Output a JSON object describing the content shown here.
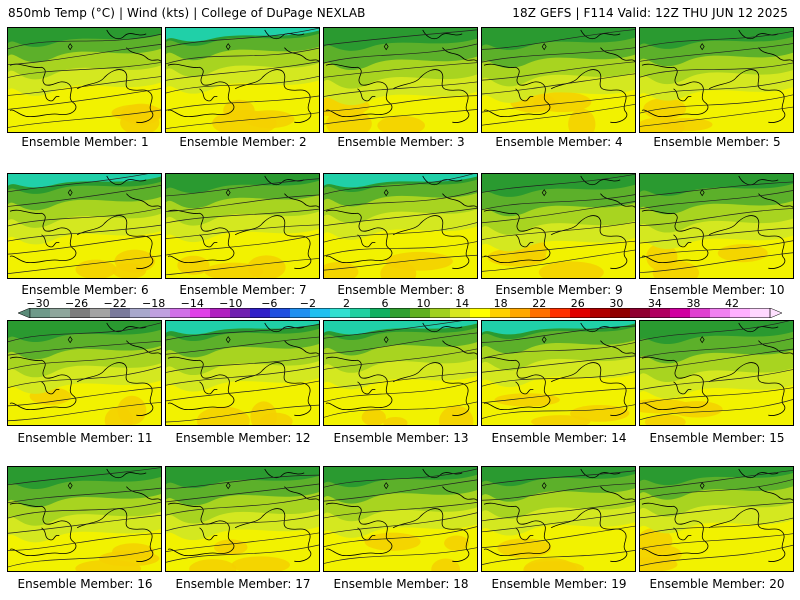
{
  "header": {
    "left": "850mb Temp (°C) | Wind (kts) | College of DuPage NEXLAB",
    "right": "18Z GEFS | F114 Valid: 12Z THU JUN 12 2025"
  },
  "legend": {
    "ticks": [
      "-30",
      "-26",
      "-22",
      "-18",
      "-14",
      "-10",
      "-6",
      "-2",
      "2",
      "6",
      "10",
      "14",
      "18",
      "22",
      "26",
      "30",
      "34",
      "38",
      "42"
    ],
    "colors": [
      "#6e9a8a",
      "#8ea69c",
      "#7d7d7d",
      "#a3a3a3",
      "#7a7a9c",
      "#a8a8cc",
      "#c0a0e0",
      "#d070e8",
      "#e040e8",
      "#b020c0",
      "#7020b0",
      "#3020c8",
      "#2050e0",
      "#2090f0",
      "#20c0f0",
      "#30e0d0",
      "#20d0a0",
      "#10b060",
      "#30a030",
      "#60b020",
      "#a0d020",
      "#d8e820",
      "#ffff00",
      "#ffd000",
      "#ffa800",
      "#ff7000",
      "#ff3000",
      "#e00000",
      "#b00000",
      "#900000",
      "#900030",
      "#b00060",
      "#d000a0",
      "#e040d0",
      "#f080f0",
      "#ffb0ff",
      "#ffd8ff"
    ]
  },
  "panels": [
    {
      "label": "Ensemble Member: 1"
    },
    {
      "label": "Ensemble Member: 2"
    },
    {
      "label": "Ensemble Member: 3"
    },
    {
      "label": "Ensemble Member: 4"
    },
    {
      "label": "Ensemble Member: 5"
    },
    {
      "label": "Ensemble Member: 6"
    },
    {
      "label": "Ensemble Member: 7"
    },
    {
      "label": "Ensemble Member: 8"
    },
    {
      "label": "Ensemble Member: 9"
    },
    {
      "label": "Ensemble Member: 10"
    },
    {
      "label": "Ensemble Member: 11"
    },
    {
      "label": "Ensemble Member: 12"
    },
    {
      "label": "Ensemble Member: 13"
    },
    {
      "label": "Ensemble Member: 14"
    },
    {
      "label": "Ensemble Member: 15"
    },
    {
      "label": "Ensemble Member: 16"
    },
    {
      "label": "Ensemble Member: 17"
    },
    {
      "label": "Ensemble Member: 18"
    },
    {
      "label": "Ensemble Member: 19"
    },
    {
      "label": "Ensemble Member: 20"
    }
  ]
}
